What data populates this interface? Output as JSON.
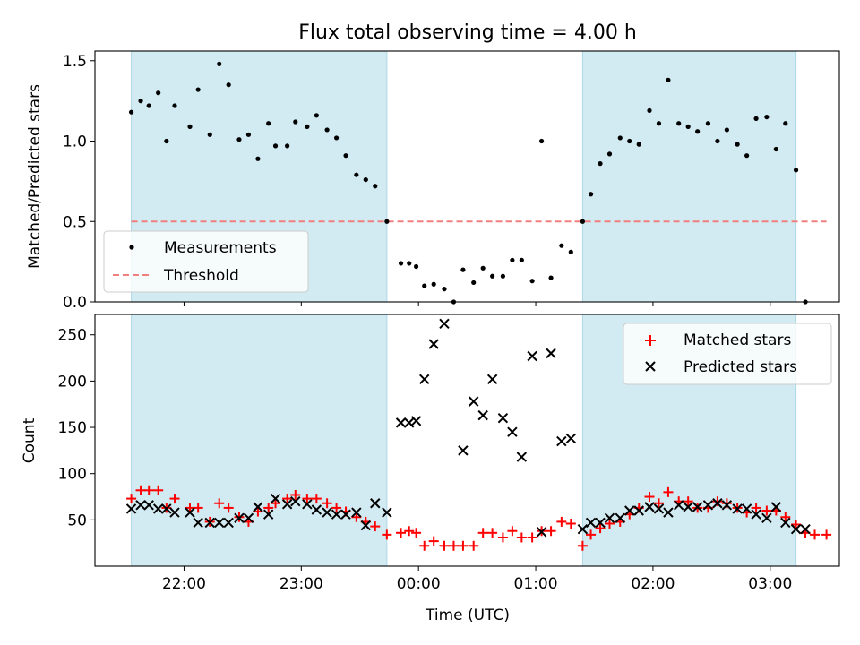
{
  "figure": {
    "title": "Flux total observing time = 4.00 h",
    "xlabel": "Time (UTC)",
    "xticks": [
      {
        "t": 22.0,
        "label": "22:00"
      },
      {
        "t": 23.0,
        "label": "23:00"
      },
      {
        "t": 24.0,
        "label": "00:00"
      },
      {
        "t": 25.0,
        "label": "01:00"
      },
      {
        "t": 26.0,
        "label": "02:00"
      },
      {
        "t": 27.0,
        "label": "03:00"
      }
    ],
    "xlim": [
      21.24,
      27.59
    ],
    "shaded_intervals": [
      [
        21.55,
        23.73
      ],
      [
        25.4,
        27.22
      ]
    ],
    "shade_color": "#add8e6"
  },
  "chart_data": [
    {
      "type": "scatter",
      "ylabel": "Matched/Predicted stars",
      "ylim": [
        0.0,
        1.56
      ],
      "yticks": [
        "0.0",
        "0.5",
        "1.0",
        "1.5"
      ],
      "threshold": {
        "name": "Threshold",
        "y": 0.5,
        "x_range": [
          21.55,
          27.48
        ],
        "color": "#f08080",
        "style": "dashed"
      },
      "legend": {
        "placement": "lower-left",
        "entries": [
          "Measurements",
          "Threshold"
        ]
      },
      "series": [
        {
          "name": "Measurements",
          "color": "#000000",
          "marker": "dot",
          "x": [
            21.55,
            21.63,
            21.7,
            21.78,
            21.85,
            21.92,
            22.05,
            22.12,
            22.22,
            22.3,
            22.38,
            22.47,
            22.55,
            22.63,
            22.72,
            22.78,
            22.88,
            22.95,
            23.05,
            23.13,
            23.22,
            23.3,
            23.38,
            23.47,
            23.55,
            23.63,
            23.73,
            23.85,
            23.92,
            23.98,
            24.05,
            24.13,
            24.22,
            24.3,
            24.38,
            24.47,
            24.55,
            24.63,
            24.72,
            24.8,
            24.88,
            24.97,
            25.05,
            25.13,
            25.22,
            25.3,
            25.4,
            25.47,
            25.55,
            25.63,
            25.72,
            25.8,
            25.88,
            25.97,
            26.05,
            26.13,
            26.22,
            26.3,
            26.38,
            26.47,
            26.55,
            26.63,
            26.72,
            26.8,
            26.88,
            26.97,
            27.05,
            27.13,
            27.22,
            27.3
          ],
          "y": [
            1.18,
            1.25,
            1.22,
            1.3,
            1.0,
            1.22,
            1.09,
            1.32,
            1.04,
            1.48,
            1.35,
            1.01,
            1.04,
            0.89,
            1.11,
            0.97,
            0.97,
            1.12,
            1.09,
            1.16,
            1.07,
            1.02,
            0.91,
            0.79,
            0.76,
            0.72,
            0.5,
            0.24,
            0.24,
            0.22,
            0.1,
            0.11,
            0.08,
            0.0,
            0.2,
            0.12,
            0.21,
            0.16,
            0.16,
            0.26,
            0.26,
            0.13,
            1.0,
            0.15,
            0.35,
            0.31,
            0.5,
            0.67,
            0.86,
            0.92,
            1.02,
            1.0,
            0.98,
            1.19,
            1.11,
            1.38,
            1.11,
            1.09,
            1.06,
            1.11,
            1.0,
            1.07,
            0.98,
            0.91,
            1.14,
            1.15,
            0.95,
            1.11,
            0.82,
            0.0
          ]
        }
      ]
    },
    {
      "type": "scatter",
      "ylabel": "Count",
      "ylim": [
        0,
        272
      ],
      "yticks": [
        "50",
        "100",
        "150",
        "200",
        "250"
      ],
      "legend": {
        "placement": "top-right",
        "entries": [
          "Matched stars",
          "Predicted stars"
        ]
      },
      "series": [
        {
          "name": "Matched stars",
          "color": "#ff0000",
          "marker": "plus",
          "x": [
            21.55,
            21.63,
            21.7,
            21.78,
            21.85,
            21.92,
            22.05,
            22.12,
            22.22,
            22.3,
            22.38,
            22.47,
            22.55,
            22.63,
            22.72,
            22.78,
            22.88,
            22.95,
            23.05,
            23.13,
            23.22,
            23.3,
            23.38,
            23.47,
            23.55,
            23.63,
            23.73,
            23.85,
            23.92,
            23.98,
            24.05,
            24.13,
            24.22,
            24.3,
            24.38,
            24.47,
            24.55,
            24.63,
            24.72,
            24.8,
            24.88,
            24.97,
            25.05,
            25.13,
            25.22,
            25.3,
            25.4,
            25.47,
            25.55,
            25.63,
            25.72,
            25.8,
            25.88,
            25.97,
            26.05,
            26.13,
            26.22,
            26.3,
            26.38,
            26.47,
            26.55,
            26.63,
            26.72,
            26.8,
            26.88,
            26.97,
            27.05,
            27.13,
            27.22,
            27.3,
            27.38,
            27.48
          ],
          "y": [
            73,
            82,
            82,
            82,
            63,
            73,
            63,
            63,
            48,
            68,
            63,
            53,
            48,
            59,
            63,
            68,
            73,
            77,
            73,
            73,
            68,
            63,
            59,
            53,
            48,
            43,
            34,
            36,
            38,
            36,
            22,
            27,
            22,
            22,
            22,
            22,
            36,
            36,
            31,
            38,
            31,
            31,
            38,
            38,
            48,
            46,
            22,
            34,
            41,
            46,
            48,
            56,
            63,
            75,
            68,
            80,
            70,
            70,
            63,
            63,
            70,
            68,
            63,
            58,
            63,
            60,
            60,
            53,
            45,
            36,
            34,
            34
          ]
        },
        {
          "name": "Predicted stars",
          "color": "#000000",
          "marker": "x",
          "x": [
            21.55,
            21.63,
            21.7,
            21.78,
            21.85,
            21.92,
            22.05,
            22.12,
            22.22,
            22.3,
            22.38,
            22.47,
            22.55,
            22.63,
            22.72,
            22.78,
            22.88,
            22.95,
            23.05,
            23.13,
            23.22,
            23.3,
            23.38,
            23.47,
            23.55,
            23.63,
            23.73,
            23.85,
            23.92,
            23.98,
            24.05,
            24.13,
            24.22,
            24.38,
            24.47,
            24.55,
            24.63,
            24.72,
            24.8,
            24.88,
            24.97,
            25.05,
            25.13,
            25.22,
            25.3,
            25.4,
            25.47,
            25.55,
            25.63,
            25.72,
            25.8,
            25.88,
            25.97,
            26.05,
            26.13,
            26.22,
            26.3,
            26.38,
            26.47,
            26.55,
            26.63,
            26.72,
            26.8,
            26.88,
            26.97,
            27.05,
            27.13,
            27.22,
            27.3
          ],
          "y": [
            62,
            66,
            66,
            62,
            62,
            58,
            58,
            47,
            47,
            47,
            47,
            52,
            52,
            64,
            56,
            73,
            67,
            70,
            67,
            61,
            58,
            56,
            56,
            58,
            44,
            68,
            58,
            155,
            155,
            157,
            202,
            240,
            262,
            125,
            178,
            163,
            202,
            160,
            145,
            118,
            227,
            37,
            230,
            135,
            138,
            40,
            47,
            47,
            52,
            52,
            60,
            60,
            64,
            62,
            58,
            66,
            64,
            64,
            66,
            68,
            66,
            62,
            62,
            56,
            52,
            64,
            47,
            40,
            40
          ]
        }
      ]
    }
  ]
}
